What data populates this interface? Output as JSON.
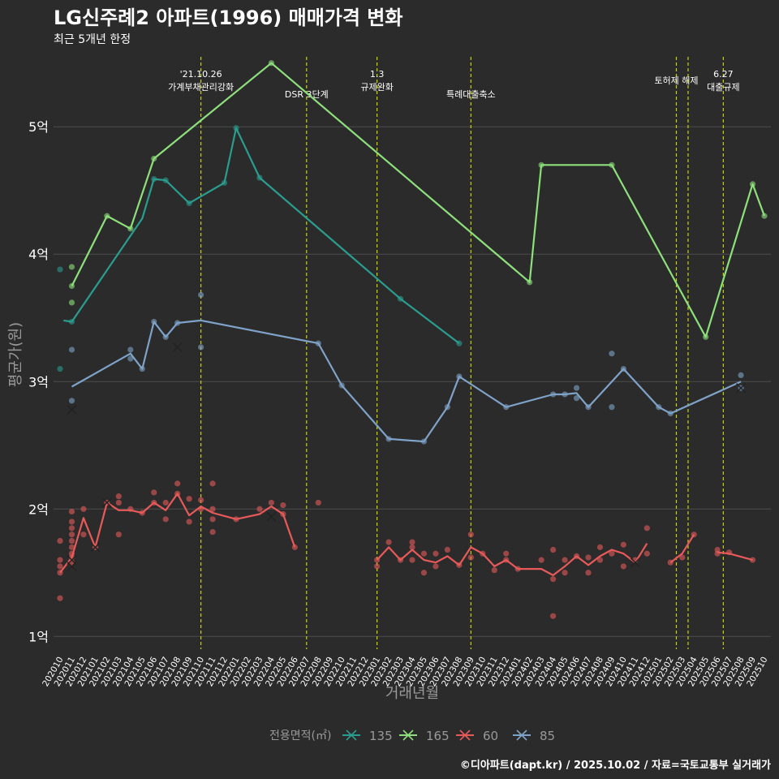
{
  "colors": {
    "background": "#2b2b2b",
    "grid": "#4d4d4d",
    "vline": "#c8d400",
    "text": "#ffffff",
    "subtle": "#999999",
    "s135": "#2a9d8f",
    "s165": "#8ee07c",
    "s60": "#e85a5a",
    "s85": "#7fa3c8"
  },
  "chart_data": {
    "type": "line",
    "title": "LG신주례2 아파트(1996) 매매가격 변화",
    "subtitle": "최근 5개년 한정",
    "xlabel": "거래년월",
    "ylabel": "평균가(원)",
    "ylim": [
      0.9,
      5.6
    ],
    "yticks": [
      1,
      2,
      3,
      4,
      5
    ],
    "ytick_labels": [
      "1억",
      "2억",
      "3억",
      "4억",
      "5억"
    ],
    "grid": true,
    "legend_title": "전용면적(㎡)",
    "legend_position": "bottom",
    "caption": "©디아파트(dapt.kr) / 2025.10.02 / 자료=국토교통부 실거래가",
    "x_ticks": [
      "202010",
      "202011",
      "202012",
      "202101",
      "202102",
      "202103",
      "202104",
      "202105",
      "202106",
      "202107",
      "202108",
      "202109",
      "202110",
      "202111",
      "202112",
      "202201",
      "202202",
      "202203",
      "202204",
      "202205",
      "202206",
      "202207",
      "202208",
      "202209",
      "202210",
      "202211",
      "202212",
      "202301",
      "202302",
      "202303",
      "202304",
      "202305",
      "202306",
      "202307",
      "202308",
      "202309",
      "202310",
      "202311",
      "202312",
      "202401",
      "202402",
      "202403",
      "202404",
      "202405",
      "202406",
      "202407",
      "202408",
      "202409",
      "202410",
      "202411",
      "202412",
      "202501",
      "202502",
      "202503",
      "202504",
      "202505",
      "202506",
      "202507",
      "202508",
      "202509",
      "202510"
    ],
    "events": [
      {
        "x": 12.0,
        "label1": "'21.10.26",
        "label2": "가계부채관리강화"
      },
      {
        "x": 21.0,
        "label1": "",
        "label2": "DSR 3단계"
      },
      {
        "x": 27.0,
        "label1": "1.3",
        "label2": "규제완화"
      },
      {
        "x": 35.0,
        "label1": "",
        "label2": "특례대출축소"
      },
      {
        "x": 52.5,
        "label1": "",
        "label2": "토허제 해제"
      },
      {
        "x": 53.5,
        "label1": "",
        "label2": ""
      },
      {
        "x": 56.5,
        "label1": "6.27",
        "label2": "대출규제"
      }
    ],
    "series": [
      {
        "name": "135",
        "color_key": "s135",
        "line": [
          [
            0.3,
            3.48
          ],
          [
            1,
            3.47
          ],
          [
            7,
            4.28
          ],
          [
            8,
            4.59
          ],
          [
            9,
            4.58
          ],
          [
            11,
            4.4
          ],
          [
            14,
            4.56
          ],
          [
            15,
            4.99
          ],
          [
            17,
            4.6
          ],
          [
            29,
            3.65
          ],
          [
            34,
            3.3
          ]
        ],
        "points": [
          [
            0,
            3.88
          ],
          [
            0,
            3.1
          ],
          [
            1,
            3.47
          ],
          [
            8,
            4.59
          ],
          [
            9,
            4.58
          ],
          [
            11,
            4.4
          ],
          [
            14,
            4.56
          ],
          [
            15,
            4.99
          ],
          [
            17,
            4.6
          ],
          [
            29,
            3.65
          ],
          [
            34,
            3.3
          ]
        ],
        "crosses": []
      },
      {
        "name": "165",
        "color_key": "s165",
        "line": [
          [
            1,
            3.75
          ],
          [
            4,
            4.3
          ],
          [
            6,
            4.2
          ],
          [
            8,
            4.75
          ],
          [
            18,
            5.5
          ],
          [
            40,
            3.78
          ],
          [
            41,
            4.7
          ],
          [
            47,
            4.7
          ],
          [
            55,
            3.35
          ],
          [
            59,
            4.55
          ],
          [
            60,
            4.3
          ]
        ],
        "points": [
          [
            1,
            3.9
          ],
          [
            1,
            3.62
          ],
          [
            1,
            3.75
          ],
          [
            4,
            4.3
          ],
          [
            6,
            4.2
          ],
          [
            8,
            4.75
          ],
          [
            18,
            5.5
          ],
          [
            40,
            3.78
          ],
          [
            41,
            4.7
          ],
          [
            47,
            4.7
          ],
          [
            55,
            3.35
          ],
          [
            59,
            4.55
          ],
          [
            60,
            4.3
          ]
        ],
        "crosses": []
      },
      {
        "name": "60",
        "color_key": "s60",
        "line": [
          [
            0,
            1.5
          ],
          [
            1,
            1.62
          ],
          [
            2,
            1.93
          ],
          [
            3,
            1.7
          ],
          [
            4,
            2.05
          ],
          [
            5,
            1.99
          ],
          [
            6,
            1.99
          ],
          [
            7,
            1.97
          ],
          [
            8,
            2.05
          ],
          [
            9,
            1.99
          ],
          [
            10,
            2.12
          ],
          [
            11,
            1.95
          ],
          [
            12,
            2.02
          ],
          [
            13,
            1.97
          ],
          [
            15,
            1.92
          ],
          [
            17,
            1.96
          ],
          [
            18,
            2.02
          ],
          [
            19,
            1.96
          ],
          [
            20,
            1.7
          ],
          null,
          [
            27,
            1.6
          ],
          [
            28,
            1.7
          ],
          [
            29,
            1.6
          ],
          [
            30,
            1.68
          ],
          [
            31,
            1.6
          ],
          [
            32,
            1.58
          ],
          [
            33,
            1.63
          ],
          [
            34,
            1.56
          ],
          [
            35,
            1.7
          ],
          [
            36,
            1.65
          ],
          [
            37,
            1.55
          ],
          [
            38,
            1.6
          ],
          [
            39,
            1.53
          ],
          [
            41,
            1.53
          ],
          [
            42,
            1.48
          ],
          [
            43,
            1.55
          ],
          [
            44,
            1.63
          ],
          [
            45,
            1.56
          ],
          [
            46,
            1.63
          ],
          [
            47,
            1.68
          ],
          [
            48,
            1.65
          ],
          [
            49,
            1.58
          ],
          [
            50,
            1.73
          ],
          null,
          [
            52,
            1.58
          ],
          [
            53,
            1.65
          ],
          [
            54,
            1.8
          ],
          null,
          [
            56,
            1.66
          ],
          [
            57,
            1.65
          ],
          [
            59,
            1.6
          ]
        ],
        "points": [
          [
            0,
            1.3
          ],
          [
            0,
            1.5
          ],
          [
            0,
            1.55
          ],
          [
            0,
            1.6
          ],
          [
            0,
            1.75
          ],
          [
            1,
            1.58
          ],
          [
            1,
            1.62
          ],
          [
            1,
            1.65
          ],
          [
            1,
            1.7
          ],
          [
            1,
            1.75
          ],
          [
            1,
            1.8
          ],
          [
            1,
            1.85
          ],
          [
            1,
            1.9
          ],
          [
            1,
            1.98
          ],
          [
            2,
            1.8
          ],
          [
            2,
            2.0
          ],
          [
            3,
            1.7
          ],
          [
            4,
            2.05
          ],
          [
            5,
            1.8
          ],
          [
            5,
            2.05
          ],
          [
            5,
            2.1
          ],
          [
            6,
            2.0
          ],
          [
            7,
            1.97
          ],
          [
            8,
            2.05
          ],
          [
            8,
            2.13
          ],
          [
            9,
            1.92
          ],
          [
            9,
            2.05
          ],
          [
            10,
            2.12
          ],
          [
            10,
            2.2
          ],
          [
            11,
            1.9
          ],
          [
            11,
            2.08
          ],
          [
            12,
            2.07
          ],
          [
            12,
            2.0
          ],
          [
            13,
            1.82
          ],
          [
            13,
            1.92
          ],
          [
            13,
            2.0
          ],
          [
            13,
            2.2
          ],
          [
            15,
            1.92
          ],
          [
            17,
            2.0
          ],
          [
            18,
            2.05
          ],
          [
            19,
            1.96
          ],
          [
            19,
            2.03
          ],
          [
            20,
            1.7
          ],
          [
            22,
            2.05
          ],
          [
            27,
            1.55
          ],
          [
            27,
            1.6
          ],
          [
            28,
            1.74
          ],
          [
            29,
            1.6
          ],
          [
            30,
            1.7
          ],
          [
            30,
            1.74
          ],
          [
            30,
            1.6
          ],
          [
            31,
            1.5
          ],
          [
            31,
            1.65
          ],
          [
            32,
            1.55
          ],
          [
            32,
            1.65
          ],
          [
            33,
            1.68
          ],
          [
            34,
            1.56
          ],
          [
            35,
            1.8
          ],
          [
            35,
            1.62
          ],
          [
            36,
            1.65
          ],
          [
            37,
            1.52
          ],
          [
            38,
            1.6
          ],
          [
            38,
            1.65
          ],
          [
            39,
            1.53
          ],
          [
            41,
            1.6
          ],
          [
            42,
            1.45
          ],
          [
            42,
            1.68
          ],
          [
            42,
            1.16
          ],
          [
            43,
            1.5
          ],
          [
            43,
            1.6
          ],
          [
            44,
            1.63
          ],
          [
            45,
            1.5
          ],
          [
            45,
            1.62
          ],
          [
            46,
            1.6
          ],
          [
            46,
            1.7
          ],
          [
            47,
            1.65
          ],
          [
            48,
            1.55
          ],
          [
            48,
            1.72
          ],
          [
            49,
            1.6
          ],
          [
            50,
            1.65
          ],
          [
            50,
            1.85
          ],
          [
            52,
            1.58
          ],
          [
            53,
            1.62
          ],
          [
            54,
            1.8
          ],
          [
            56,
            1.65
          ],
          [
            56,
            1.68
          ],
          [
            57,
            1.66
          ],
          [
            59,
            1.6
          ]
        ],
        "crosses": [
          [
            1,
            1.6
          ],
          [
            1,
            1.55
          ],
          [
            3,
            1.7
          ],
          [
            4,
            2.05
          ],
          [
            18,
            1.94
          ],
          [
            49,
            1.58
          ]
        ]
      },
      {
        "name": "85",
        "color_key": "s85",
        "line": [
          [
            1,
            2.96
          ],
          [
            6,
            3.22
          ],
          [
            7,
            3.1
          ],
          [
            8,
            3.47
          ],
          [
            9,
            3.35
          ],
          [
            10,
            3.46
          ],
          [
            12,
            3.48
          ],
          [
            22,
            3.3
          ],
          [
            24,
            2.97
          ],
          [
            28,
            2.55
          ],
          [
            31,
            2.53
          ],
          [
            33,
            2.8
          ],
          [
            34,
            3.04
          ],
          [
            38,
            2.8
          ],
          [
            42,
            2.9
          ],
          [
            43,
            2.9
          ],
          [
            44,
            2.91
          ],
          [
            45,
            2.8
          ],
          [
            48,
            3.1
          ],
          [
            51,
            2.8
          ],
          [
            52,
            2.75
          ],
          [
            58,
            3.0
          ]
        ],
        "points": [
          [
            1,
            3.25
          ],
          [
            1,
            2.85
          ],
          [
            6,
            3.25
          ],
          [
            6,
            3.18
          ],
          [
            7,
            3.1
          ],
          [
            8,
            3.47
          ],
          [
            9,
            3.35
          ],
          [
            10,
            3.46
          ],
          [
            12,
            3.68
          ],
          [
            12,
            3.27
          ],
          [
            22,
            3.3
          ],
          [
            24,
            2.97
          ],
          [
            28,
            2.55
          ],
          [
            31,
            2.53
          ],
          [
            33,
            2.8
          ],
          [
            34,
            3.04
          ],
          [
            38,
            2.8
          ],
          [
            42,
            2.9
          ],
          [
            43,
            2.9
          ],
          [
            44,
            2.95
          ],
          [
            44,
            2.87
          ],
          [
            45,
            2.8
          ],
          [
            47,
            3.22
          ],
          [
            47,
            2.8
          ],
          [
            48,
            3.1
          ],
          [
            51,
            2.8
          ],
          [
            52,
            2.75
          ],
          [
            58,
            3.05
          ],
          [
            58,
            2.95
          ]
        ],
        "crosses": [
          [
            1,
            2.78
          ],
          [
            10,
            3.27
          ],
          [
            58,
            2.95
          ]
        ]
      }
    ]
  }
}
